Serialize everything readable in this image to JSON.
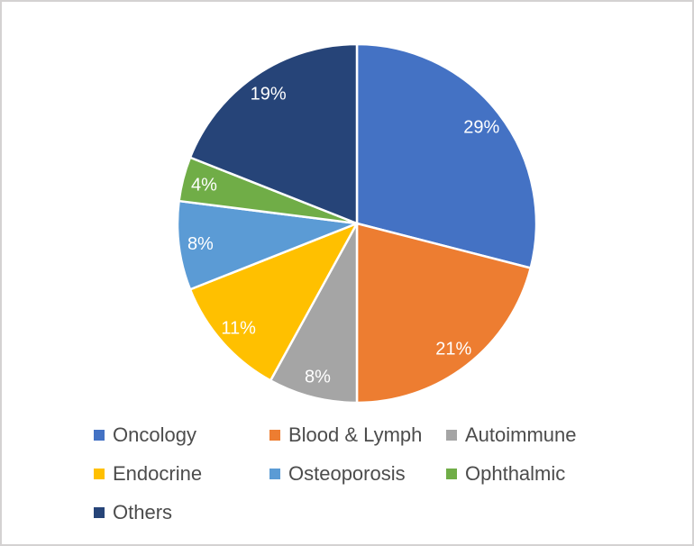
{
  "chart_data": {
    "type": "pie",
    "categories": [
      "Oncology",
      "Blood & Lymph",
      "Autoimmune",
      "Endocrine",
      "Osteoporosis",
      "Ophthalmic",
      "Others"
    ],
    "values": [
      29,
      21,
      8,
      11,
      8,
      4,
      19
    ],
    "data_labels": [
      "29%",
      "21%",
      "8%",
      "11%",
      "8%",
      "4%",
      "19%"
    ],
    "colors": [
      "#4472C4",
      "#ED7D31",
      "#A5A5A5",
      "#FFC000",
      "#5B9BD5",
      "#70AD47",
      "#264478"
    ],
    "title": "",
    "start_angle_deg": 0,
    "direction": "clockwise",
    "legend_position": "bottom",
    "data_label_color": "#FFFFFF",
    "slice_border_color": "#FFFFFF",
    "legend_text_color": "#4C4C4C",
    "frame_border_color": "#D4D2D2"
  }
}
